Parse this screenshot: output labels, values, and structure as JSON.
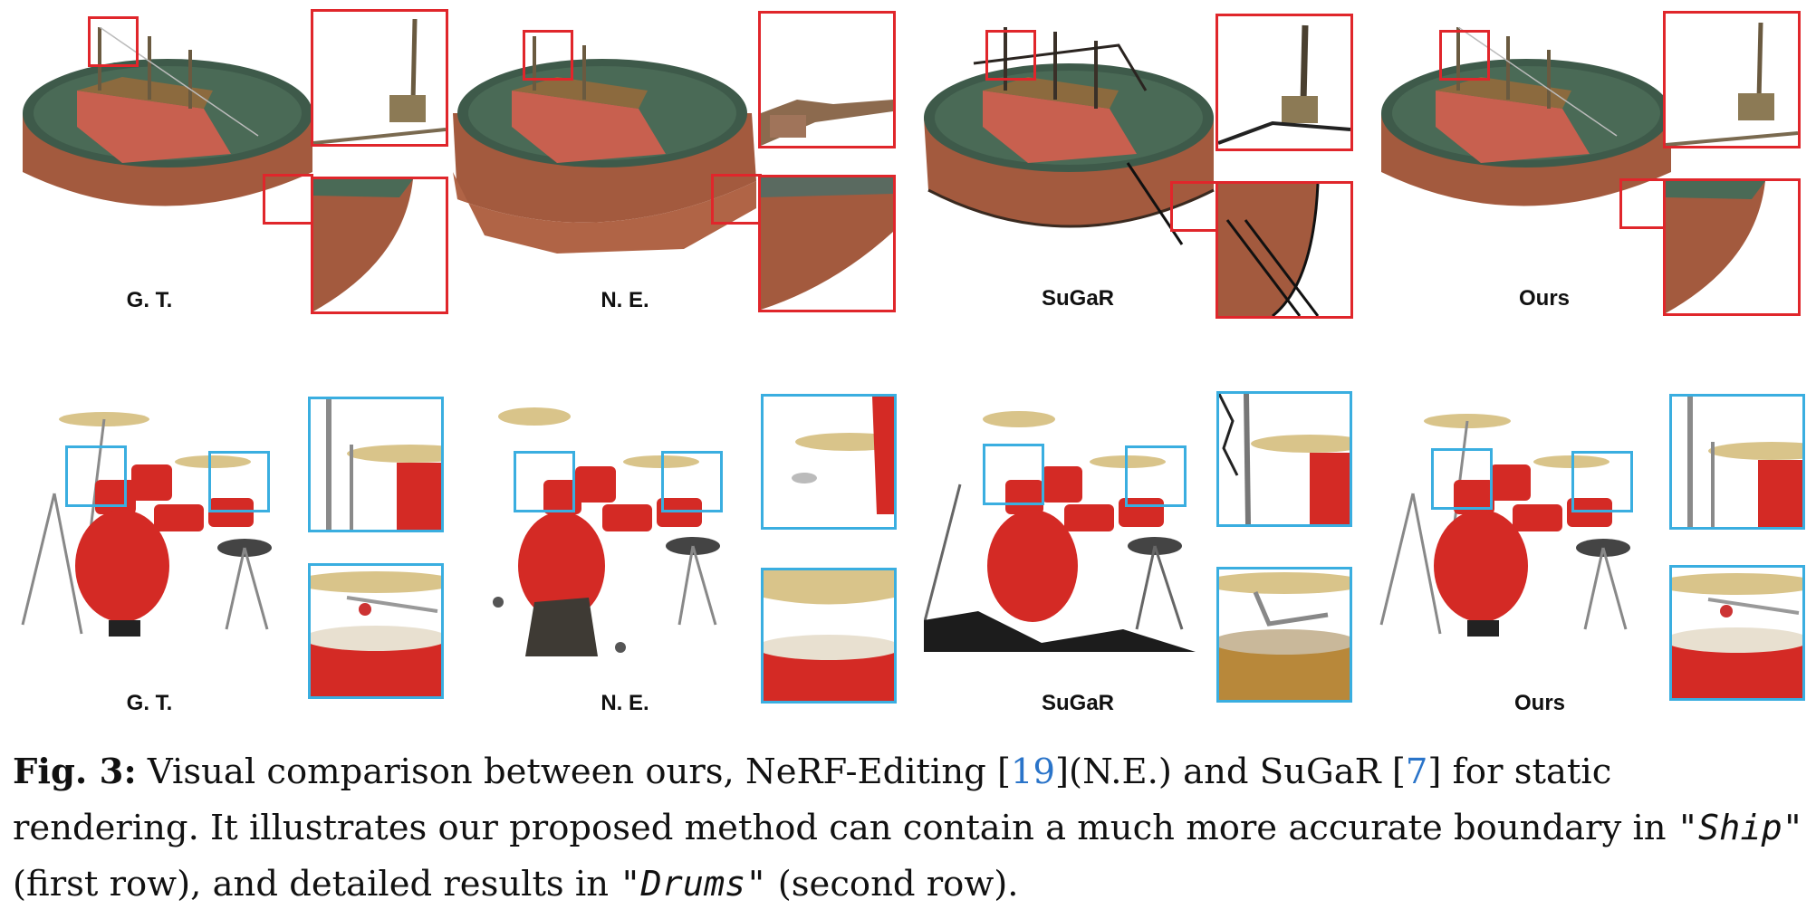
{
  "figure": {
    "rows": [
      {
        "scene": "ship",
        "panels": [
          {
            "label": "G. T."
          },
          {
            "label": "N. E."
          },
          {
            "label": "SuGaR"
          },
          {
            "label": "Ours"
          }
        ]
      },
      {
        "scene": "drums",
        "panels": [
          {
            "label": "G. T."
          },
          {
            "label": "N. E."
          },
          {
            "label": "SuGaR"
          },
          {
            "label": "Ours"
          }
        ]
      }
    ],
    "colors": {
      "ship_roi": "#e0262b",
      "drums_roi": "#3aaee0",
      "ship_hull": "#c8604f",
      "bowl_wall": "#a35a3e",
      "water": "#3e5a4a",
      "drum_red": "#d42a25",
      "cymbal": "#d9c48a",
      "chrome": "#8a8a8a"
    }
  },
  "caption": {
    "fig_label": "Fig. 3:",
    "text_1": " Visual comparison between ours, NeRF-Editing [",
    "ref_1": "19",
    "text_2": "](N.E.) and SuGaR [",
    "ref_2": "7",
    "text_3": "] for static rendering. It illustrates our proposed method can contain a much more accurate boundary in ",
    "italic_1": "\"Ship\"",
    "text_4": " (first row), and detailed results in ",
    "italic_2": "\"Drums\"",
    "text_5": " (second row)."
  }
}
